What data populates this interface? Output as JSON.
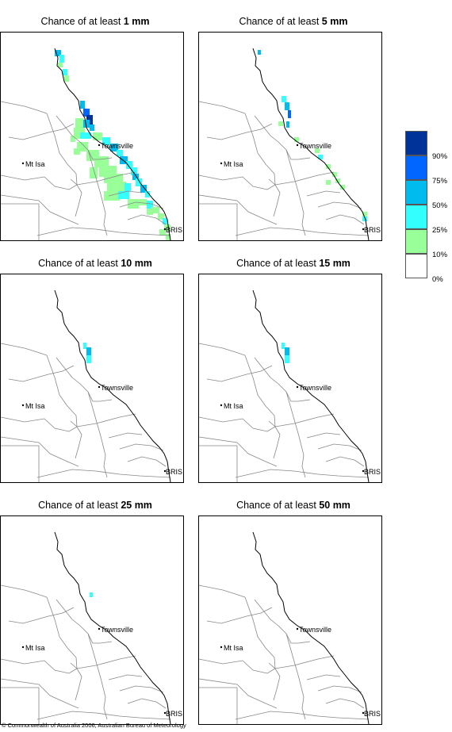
{
  "panels": [
    {
      "title_prefix": "Chance of at least ",
      "threshold": "1 mm",
      "shading": "heavy"
    },
    {
      "title_prefix": "Chance of at least ",
      "threshold": "5 mm",
      "shading": "moderate"
    },
    {
      "title_prefix": "Chance of at least ",
      "threshold": "10 mm",
      "shading": "light"
    },
    {
      "title_prefix": "Chance of at least ",
      "threshold": "15 mm",
      "shading": "light"
    },
    {
      "title_prefix": "Chance of at least ",
      "threshold": "25 mm",
      "shading": "trace"
    },
    {
      "title_prefix": "Chance of at least ",
      "threshold": "50 mm",
      "shading": "none"
    }
  ],
  "places": {
    "townsville": "Townsville",
    "mt_isa": "Mt Isa",
    "brisbane": "BRIS"
  },
  "legend": {
    "items": [
      {
        "label": "90%",
        "color": "#003399"
      },
      {
        "label": "75%",
        "color": "#0066ff"
      },
      {
        "label": "50%",
        "color": "#00bbee"
      },
      {
        "label": "25%",
        "color": "#33ffff"
      },
      {
        "label": "10%",
        "color": "#99ff99"
      },
      {
        "label": "0%",
        "color": "#ffffff"
      }
    ]
  },
  "copyright": "© Commonwealth of Australia 2006, Australian Bureau of Meteorology"
}
